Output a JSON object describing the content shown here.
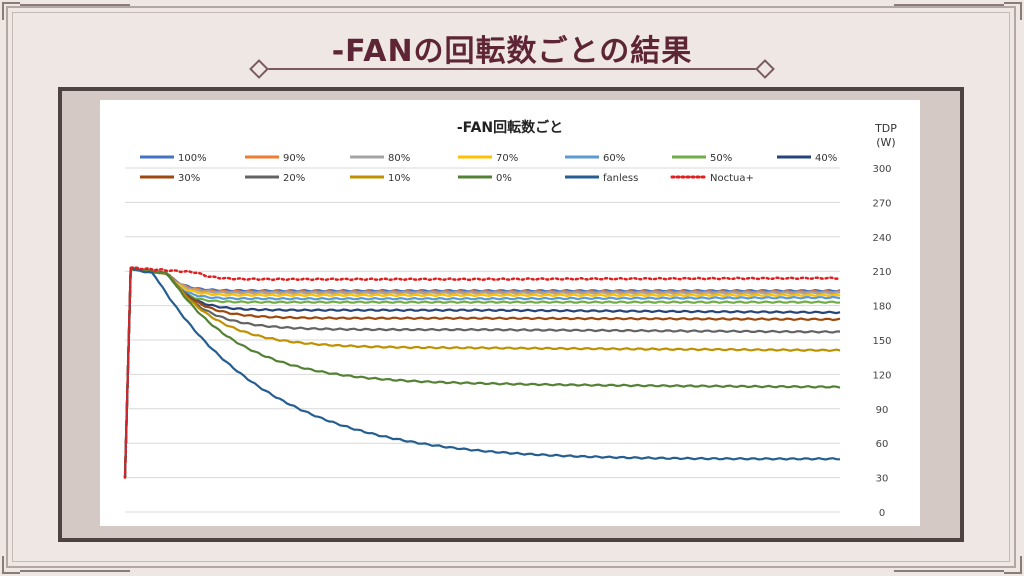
{
  "slide": {
    "title": "-FANの回転数ごとの結果"
  },
  "colors": {
    "title": "#5e2536",
    "frame": "#4e4340",
    "background": "#efe7e3"
  },
  "chart_data": {
    "type": "line",
    "title": "-FAN回転数ごと",
    "ylabel_line1": "TDP",
    "ylabel_line2": "(W)",
    "ylim": [
      0,
      300
    ],
    "yticks": [
      0,
      30,
      60,
      90,
      120,
      150,
      180,
      210,
      240,
      270,
      300
    ],
    "x_range": [
      0,
      100
    ],
    "grid": true,
    "legend_position": "top",
    "series": [
      {
        "name": "100%",
        "color": "#4472c4",
        "dash": false,
        "start": 30,
        "peak": 212,
        "drop_x": 6,
        "settle": 193,
        "tau": 2,
        "final": 193
      },
      {
        "name": "90%",
        "color": "#ed7d31",
        "dash": false,
        "start": 30,
        "peak": 212,
        "drop_x": 6,
        "settle": 192,
        "tau": 2,
        "final": 192
      },
      {
        "name": "80%",
        "color": "#a5a5a5",
        "dash": false,
        "start": 30,
        "peak": 212,
        "drop_x": 6,
        "settle": 191,
        "tau": 2,
        "final": 191
      },
      {
        "name": "70%",
        "color": "#ffc000",
        "dash": false,
        "start": 30,
        "peak": 212,
        "drop_x": 6,
        "settle": 189,
        "tau": 2,
        "final": 189
      },
      {
        "name": "60%",
        "color": "#5b9bd5",
        "dash": false,
        "start": 30,
        "peak": 212,
        "drop_x": 6,
        "settle": 186,
        "tau": 2,
        "final": 187
      },
      {
        "name": "50%",
        "color": "#70ad47",
        "dash": false,
        "start": 30,
        "peak": 212,
        "drop_x": 6,
        "settle": 183,
        "tau": 2,
        "final": 183
      },
      {
        "name": "40%",
        "color": "#264478",
        "dash": false,
        "start": 30,
        "peak": 212,
        "drop_x": 6,
        "settle": 176,
        "tau": 3,
        "final": 174
      },
      {
        "name": "30%",
        "color": "#9e480e",
        "dash": false,
        "start": 30,
        "peak": 212,
        "drop_x": 6,
        "settle": 169,
        "tau": 4,
        "final": 168
      },
      {
        "name": "20%",
        "color": "#636363",
        "dash": false,
        "start": 30,
        "peak": 212,
        "drop_x": 6,
        "settle": 159,
        "tau": 5,
        "final": 157
      },
      {
        "name": "10%",
        "color": "#bf9000",
        "dash": false,
        "start": 30,
        "peak": 212,
        "drop_x": 6,
        "settle": 143,
        "tau": 7,
        "final": 141
      },
      {
        "name": "0%",
        "color": "#548235",
        "dash": false,
        "start": 30,
        "peak": 212,
        "drop_x": 6,
        "settle": 111,
        "tau": 10,
        "final": 109
      },
      {
        "name": "fanless",
        "color": "#255e91",
        "dash": false,
        "start": 30,
        "peak": 212,
        "drop_x": 4,
        "settle": 44,
        "tau": 16,
        "final": 46
      },
      {
        "name": "Noctua+",
        "color": "#e02020",
        "dash": true,
        "start": 30,
        "peak": 213,
        "drop_x": 10,
        "settle": 203,
        "tau": 2,
        "final": 204
      }
    ]
  }
}
